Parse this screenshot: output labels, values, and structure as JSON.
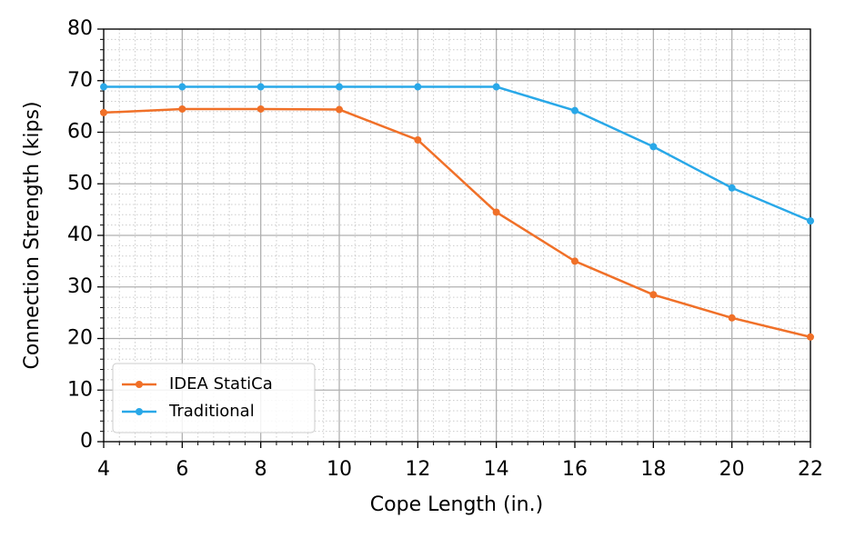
{
  "chart_data": {
    "type": "line",
    "xlabel": "Cope Length (in.)",
    "ylabel": "Connection Strength (kips)",
    "x": [
      4,
      6,
      8,
      10,
      12,
      14,
      16,
      18,
      20,
      22
    ],
    "series": [
      {
        "name": "IDEA StatiCa",
        "color": "#f07028",
        "values": [
          63.8,
          64.5,
          64.5,
          64.4,
          58.5,
          44.5,
          35,
          28.5,
          24,
          20.3
        ]
      },
      {
        "name": "Traditional",
        "color": "#29a8e8",
        "values": [
          68.8,
          68.8,
          68.8,
          68.8,
          68.8,
          68.8,
          64.2,
          57.2,
          49.2,
          42.8
        ]
      }
    ],
    "xlim": [
      4,
      22
    ],
    "xticks": [
      4,
      6,
      8,
      10,
      12,
      14,
      16,
      18,
      20,
      22
    ],
    "ylim": [
      0,
      80
    ],
    "yticks": [
      0,
      10,
      20,
      30,
      40,
      50,
      60,
      70,
      80
    ],
    "grid": true,
    "minor_grid": true,
    "legend": "lower left"
  }
}
